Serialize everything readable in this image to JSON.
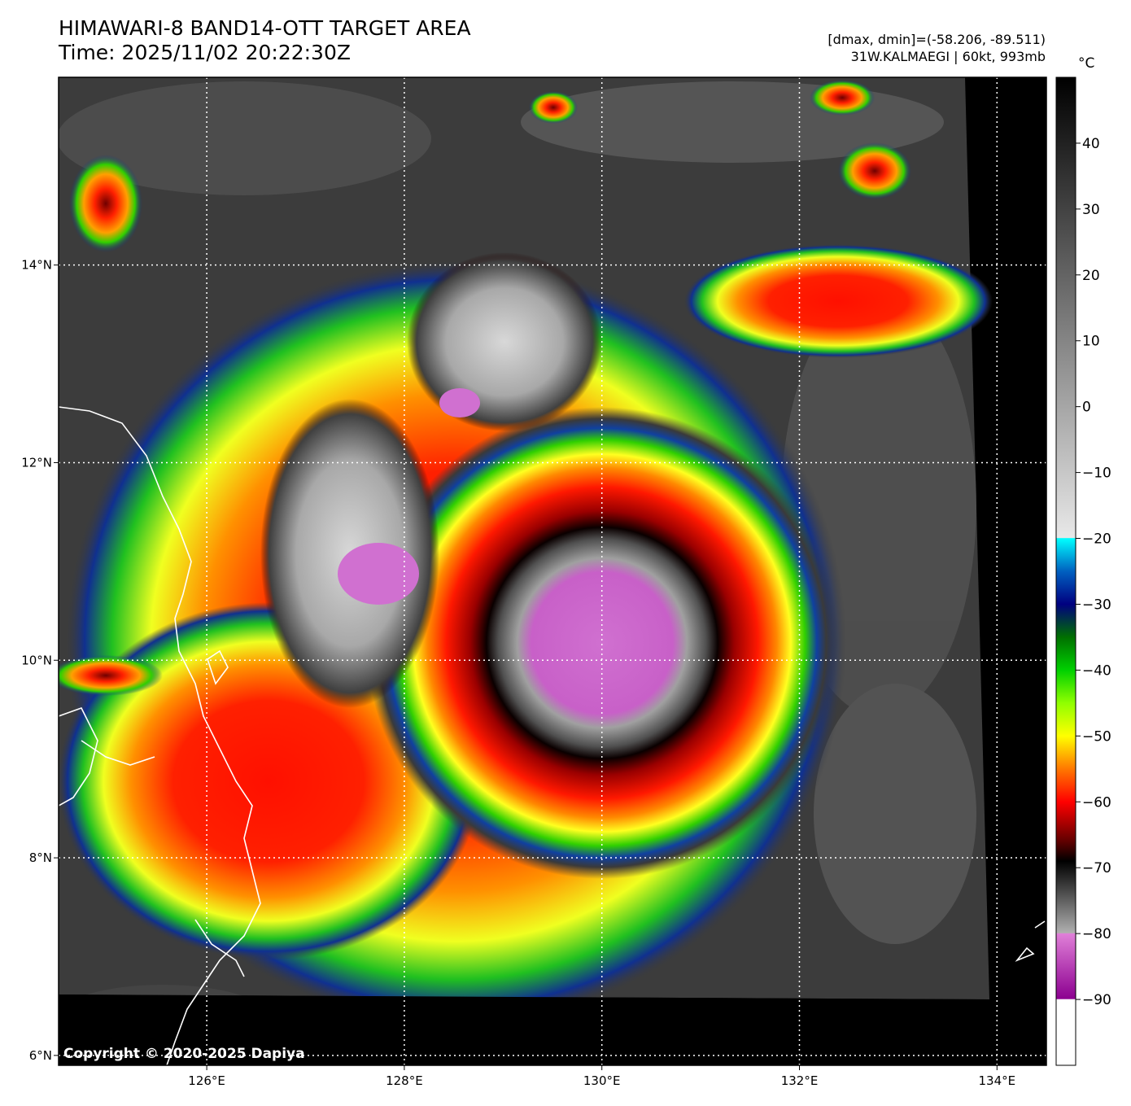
{
  "header": {
    "title_line1": "HIMAWARI-8 BAND14-OTT TARGET AREA",
    "title_line2": "Time: 2025/11/02 20:22:30Z",
    "stats_line1": "[dmax, dmin]=(-58.206, -89.511)",
    "stats_line2": "31W.KALMAEGI | 60kt, 993mb"
  },
  "map": {
    "lon_range": [
      124.5,
      134.5
    ],
    "lat_range": [
      5.9,
      15.9
    ],
    "lon_ticks": [
      {
        "value": 126,
        "label": "126°E"
      },
      {
        "value": 128,
        "label": "128°E"
      },
      {
        "value": 130,
        "label": "130°E"
      },
      {
        "value": 132,
        "label": "132°E"
      },
      {
        "value": 134,
        "label": "134°E"
      }
    ],
    "lat_ticks": [
      {
        "value": 6,
        "label": "6°N"
      },
      {
        "value": 8,
        "label": "8°N"
      },
      {
        "value": 10,
        "label": "10°N"
      },
      {
        "value": 12,
        "label": "12°N"
      },
      {
        "value": 14,
        "label": "14°N"
      }
    ],
    "storm_center": {
      "lon": 129.6,
      "lat": 10.25
    },
    "copyright": "Copyright © 2020-2025 Dapiya"
  },
  "colorbar": {
    "unit": "°C",
    "range": [
      -100,
      50
    ],
    "ticks": [
      {
        "value": 40,
        "label": "40"
      },
      {
        "value": 30,
        "label": "30"
      },
      {
        "value": 20,
        "label": "20"
      },
      {
        "value": 10,
        "label": "10"
      },
      {
        "value": 0,
        "label": "0"
      },
      {
        "value": -10,
        "label": "−10"
      },
      {
        "value": -20,
        "label": "−20"
      },
      {
        "value": -30,
        "label": "−30"
      },
      {
        "value": -40,
        "label": "−40"
      },
      {
        "value": -50,
        "label": "−50"
      },
      {
        "value": -60,
        "label": "−60"
      },
      {
        "value": -70,
        "label": "−70"
      },
      {
        "value": -80,
        "label": "−80"
      },
      {
        "value": -90,
        "label": "−90"
      }
    ],
    "stops": [
      {
        "value": -100,
        "color": "#ffffff"
      },
      {
        "value": -90,
        "color": "#ffffff"
      },
      {
        "value": -89.9,
        "color": "#8c0090"
      },
      {
        "value": -80,
        "color": "#e080d8"
      },
      {
        "value": -79.9,
        "color": "#b0b0b0"
      },
      {
        "value": -72,
        "color": "#303030"
      },
      {
        "value": -69,
        "color": "#000000"
      },
      {
        "value": -66,
        "color": "#600000"
      },
      {
        "value": -60,
        "color": "#ff0000"
      },
      {
        "value": -55,
        "color": "#ff7800"
      },
      {
        "value": -50,
        "color": "#ffff00"
      },
      {
        "value": -45,
        "color": "#90ff00"
      },
      {
        "value": -40,
        "color": "#00d000"
      },
      {
        "value": -35,
        "color": "#007000"
      },
      {
        "value": -30,
        "color": "#000080"
      },
      {
        "value": -25,
        "color": "#0060c0"
      },
      {
        "value": -20,
        "color": "#00ffff"
      },
      {
        "value": -19.9,
        "color": "#e8e8e8"
      },
      {
        "value": 50,
        "color": "#000000"
      }
    ]
  }
}
